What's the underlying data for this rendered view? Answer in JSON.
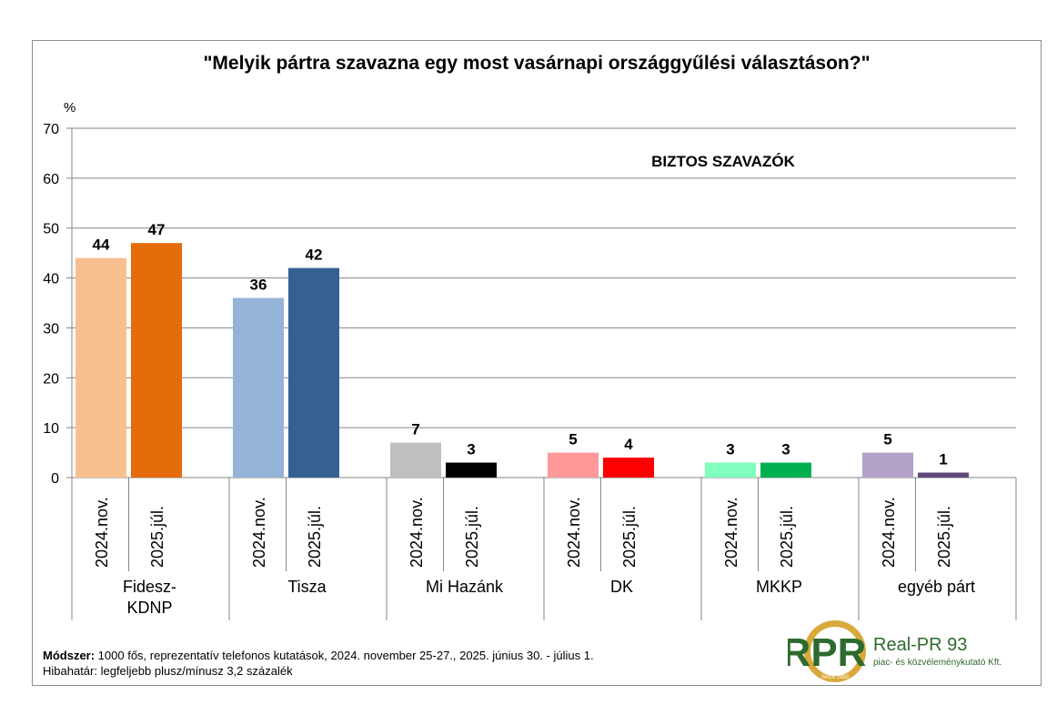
{
  "chart_data": {
    "type": "bar",
    "title": "\"Melyik pártra szavazna egy most vasárnapi országgyűlési választáson?\"",
    "subtitle": "BIZTOS SZAVAZÓK",
    "ylabel": "%",
    "ylim": [
      0,
      70
    ],
    "yticks": [
      0,
      10,
      20,
      30,
      40,
      50,
      60,
      70
    ],
    "grid": true,
    "categories": [
      "Fidesz-KDNP",
      "Tisza",
      "Mi Hazánk",
      "DK",
      "MKKP",
      "egyéb párt"
    ],
    "category_lines": [
      [
        "Fidesz-",
        "KDNP"
      ],
      [
        "Tisza"
      ],
      [
        "Mi Hazánk"
      ],
      [
        "DK"
      ],
      [
        "MKKP"
      ],
      [
        "egyéb párt"
      ]
    ],
    "period_labels": [
      "2024.nov.",
      "2025.júl."
    ],
    "values": [
      [
        44,
        47
      ],
      [
        36,
        42
      ],
      [
        7,
        3
      ],
      [
        5,
        4
      ],
      [
        3,
        3
      ],
      [
        5,
        1
      ]
    ],
    "colors": [
      [
        "#f9c08f",
        "#e46c0a"
      ],
      [
        "#95b3d7",
        "#366092"
      ],
      [
        "#bfbfbf",
        "#000000"
      ],
      [
        "#ff9999",
        "#ff0000"
      ],
      [
        "#80ffbf",
        "#00b050"
      ],
      [
        "#b3a2c7",
        "#60497a"
      ]
    ]
  },
  "footnote": {
    "method_label": "Módszer:",
    "method_text": " 1000 fős, reprezentatív telefonos kutatások, 2024. november 25-27., 2025. június 30. - július 1.",
    "error_text": "Hibahatár: legfeljebb plusz/mínusz 3,2 százalék"
  },
  "logo": {
    "mark": "RPR",
    "name": "Real-PR 93",
    "tagline": "piac- és közvéleménykutató Kft.",
    "ring_text": "Since 1993"
  }
}
